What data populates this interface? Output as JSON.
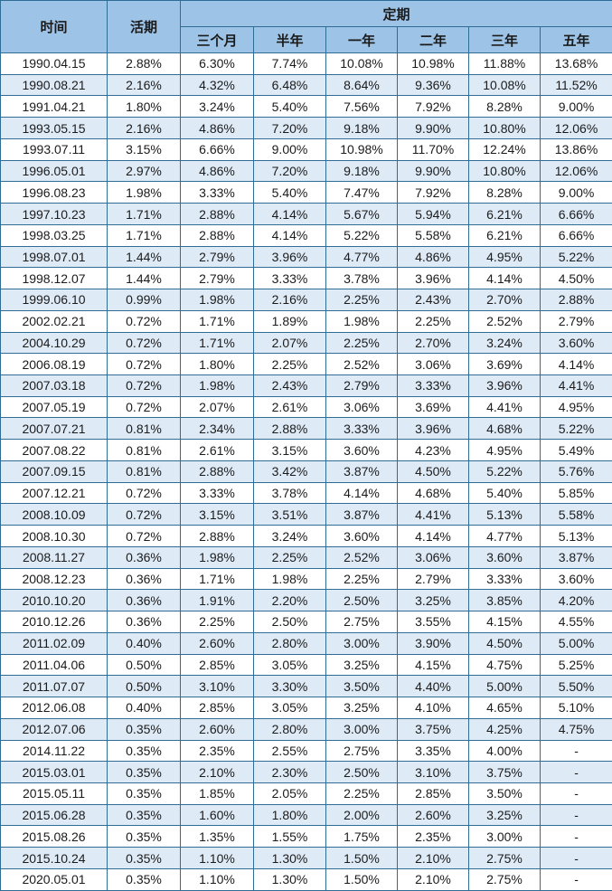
{
  "colors": {
    "header_bg": "#9DC3E6",
    "stripe_bg": "#DEEAF6",
    "row_bg": "#FFFFFF",
    "border": "#2F6D96",
    "text": "#1B1B1B"
  },
  "chart_data": {
    "type": "table",
    "column_groups": [
      {
        "label": "定期",
        "span": 6
      }
    ],
    "columns": [
      "时间",
      "活期",
      "三个月",
      "半年",
      "一年",
      "二年",
      "三年",
      "五年"
    ],
    "rows": [
      [
        "1990.04.15",
        "2.88%",
        "6.30%",
        "7.74%",
        "10.08%",
        "10.98%",
        "11.88%",
        "13.68%"
      ],
      [
        "1990.08.21",
        "2.16%",
        "4.32%",
        "6.48%",
        "8.64%",
        "9.36%",
        "10.08%",
        "11.52%"
      ],
      [
        "1991.04.21",
        "1.80%",
        "3.24%",
        "5.40%",
        "7.56%",
        "7.92%",
        "8.28%",
        "9.00%"
      ],
      [
        "1993.05.15",
        "2.16%",
        "4.86%",
        "7.20%",
        "9.18%",
        "9.90%",
        "10.80%",
        "12.06%"
      ],
      [
        "1993.07.11",
        "3.15%",
        "6.66%",
        "9.00%",
        "10.98%",
        "11.70%",
        "12.24%",
        "13.86%"
      ],
      [
        "1996.05.01",
        "2.97%",
        "4.86%",
        "7.20%",
        "9.18%",
        "9.90%",
        "10.80%",
        "12.06%"
      ],
      [
        "1996.08.23",
        "1.98%",
        "3.33%",
        "5.40%",
        "7.47%",
        "7.92%",
        "8.28%",
        "9.00%"
      ],
      [
        "1997.10.23",
        "1.71%",
        "2.88%",
        "4.14%",
        "5.67%",
        "5.94%",
        "6.21%",
        "6.66%"
      ],
      [
        "1998.03.25",
        "1.71%",
        "2.88%",
        "4.14%",
        "5.22%",
        "5.58%",
        "6.21%",
        "6.66%"
      ],
      [
        "1998.07.01",
        "1.44%",
        "2.79%",
        "3.96%",
        "4.77%",
        "4.86%",
        "4.95%",
        "5.22%"
      ],
      [
        "1998.12.07",
        "1.44%",
        "2.79%",
        "3.33%",
        "3.78%",
        "3.96%",
        "4.14%",
        "4.50%"
      ],
      [
        "1999.06.10",
        "0.99%",
        "1.98%",
        "2.16%",
        "2.25%",
        "2.43%",
        "2.70%",
        "2.88%"
      ],
      [
        "2002.02.21",
        "0.72%",
        "1.71%",
        "1.89%",
        "1.98%",
        "2.25%",
        "2.52%",
        "2.79%"
      ],
      [
        "2004.10.29",
        "0.72%",
        "1.71%",
        "2.07%",
        "2.25%",
        "2.70%",
        "3.24%",
        "3.60%"
      ],
      [
        "2006.08.19",
        "0.72%",
        "1.80%",
        "2.25%",
        "2.52%",
        "3.06%",
        "3.69%",
        "4.14%"
      ],
      [
        "2007.03.18",
        "0.72%",
        "1.98%",
        "2.43%",
        "2.79%",
        "3.33%",
        "3.96%",
        "4.41%"
      ],
      [
        "2007.05.19",
        "0.72%",
        "2.07%",
        "2.61%",
        "3.06%",
        "3.69%",
        "4.41%",
        "4.95%"
      ],
      [
        "2007.07.21",
        "0.81%",
        "2.34%",
        "2.88%",
        "3.33%",
        "3.96%",
        "4.68%",
        "5.22%"
      ],
      [
        "2007.08.22",
        "0.81%",
        "2.61%",
        "3.15%",
        "3.60%",
        "4.23%",
        "4.95%",
        "5.49%"
      ],
      [
        "2007.09.15",
        "0.81%",
        "2.88%",
        "3.42%",
        "3.87%",
        "4.50%",
        "5.22%",
        "5.76%"
      ],
      [
        "2007.12.21",
        "0.72%",
        "3.33%",
        "3.78%",
        "4.14%",
        "4.68%",
        "5.40%",
        "5.85%"
      ],
      [
        "2008.10.09",
        "0.72%",
        "3.15%",
        "3.51%",
        "3.87%",
        "4.41%",
        "5.13%",
        "5.58%"
      ],
      [
        "2008.10.30",
        "0.72%",
        "2.88%",
        "3.24%",
        "3.60%",
        "4.14%",
        "4.77%",
        "5.13%"
      ],
      [
        "2008.11.27",
        "0.36%",
        "1.98%",
        "2.25%",
        "2.52%",
        "3.06%",
        "3.60%",
        "3.87%"
      ],
      [
        "2008.12.23",
        "0.36%",
        "1.71%",
        "1.98%",
        "2.25%",
        "2.79%",
        "3.33%",
        "3.60%"
      ],
      [
        "2010.10.20",
        "0.36%",
        "1.91%",
        "2.20%",
        "2.50%",
        "3.25%",
        "3.85%",
        "4.20%"
      ],
      [
        "2010.12.26",
        "0.36%",
        "2.25%",
        "2.50%",
        "2.75%",
        "3.55%",
        "4.15%",
        "4.55%"
      ],
      [
        "2011.02.09",
        "0.40%",
        "2.60%",
        "2.80%",
        "3.00%",
        "3.90%",
        "4.50%",
        "5.00%"
      ],
      [
        "2011.04.06",
        "0.50%",
        "2.85%",
        "3.05%",
        "3.25%",
        "4.15%",
        "4.75%",
        "5.25%"
      ],
      [
        "2011.07.07",
        "0.50%",
        "3.10%",
        "3.30%",
        "3.50%",
        "4.40%",
        "5.00%",
        "5.50%"
      ],
      [
        "2012.06.08",
        "0.40%",
        "2.85%",
        "3.05%",
        "3.25%",
        "4.10%",
        "4.65%",
        "5.10%"
      ],
      [
        "2012.07.06",
        "0.35%",
        "2.60%",
        "2.80%",
        "3.00%",
        "3.75%",
        "4.25%",
        "4.75%"
      ],
      [
        "2014.11.22",
        "0.35%",
        "2.35%",
        "2.55%",
        "2.75%",
        "3.35%",
        "4.00%",
        "-"
      ],
      [
        "2015.03.01",
        "0.35%",
        "2.10%",
        "2.30%",
        "2.50%",
        "3.10%",
        "3.75%",
        "-"
      ],
      [
        "2015.05.11",
        "0.35%",
        "1.85%",
        "2.05%",
        "2.25%",
        "2.85%",
        "3.50%",
        "-"
      ],
      [
        "2015.06.28",
        "0.35%",
        "1.60%",
        "1.80%",
        "2.00%",
        "2.60%",
        "3.25%",
        "-"
      ],
      [
        "2015.08.26",
        "0.35%",
        "1.35%",
        "1.55%",
        "1.75%",
        "2.35%",
        "3.00%",
        "-"
      ],
      [
        "2015.10.24",
        "0.35%",
        "1.10%",
        "1.30%",
        "1.50%",
        "2.10%",
        "2.75%",
        "-"
      ],
      [
        "2020.05.01",
        "0.35%",
        "1.10%",
        "1.30%",
        "1.50%",
        "2.10%",
        "2.75%",
        "-"
      ]
    ]
  }
}
